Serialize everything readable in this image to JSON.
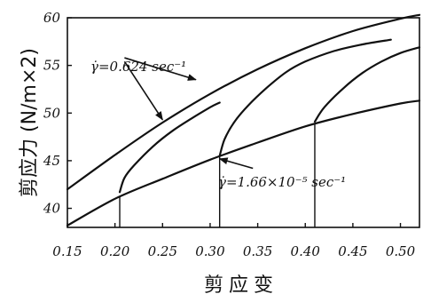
{
  "chart_data": {
    "type": "line",
    "xlabel": "剪应变",
    "ylabel": "剪应力 (N/m×2)",
    "xlim": [
      0.15,
      0.52
    ],
    "ylim": [
      38,
      60
    ],
    "x_ticks": [
      0.15,
      0.2,
      0.25,
      0.3,
      0.35,
      0.4,
      0.45,
      0.5
    ],
    "x_tick_labels": [
      "0.15",
      "0.20",
      "0.25",
      "0.30",
      "0.35",
      "0.40",
      "0.45",
      "0.50"
    ],
    "y_ticks": [
      40,
      45,
      50,
      55,
      60
    ],
    "y_tick_labels": [
      "40",
      "45",
      "50",
      "55",
      "60"
    ],
    "grid": false,
    "annotations": [
      {
        "text": "γ̇=0.624 sec⁻¹"
      },
      {
        "text": "γ̇=1.66×10⁻⁵ sec⁻¹"
      }
    ],
    "series": [
      {
        "x": [
          0.15,
          0.2,
          0.25,
          0.3,
          0.35,
          0.4,
          0.45,
          0.5,
          0.52
        ],
        "y": [
          42.0,
          45.6,
          49.0,
          52.0,
          54.6,
          56.8,
          58.6,
          59.9,
          60.3
        ]
      },
      {
        "x": [
          0.205,
          0.21,
          0.22,
          0.24,
          0.26,
          0.28,
          0.3,
          0.31
        ],
        "y": [
          41.7,
          43.2,
          44.5,
          46.5,
          48.1,
          49.4,
          50.6,
          51.1
        ]
      },
      {
        "x": [
          0.31,
          0.315,
          0.325,
          0.34,
          0.36,
          0.38,
          0.4,
          0.43,
          0.46,
          0.49
        ],
        "y": [
          45.5,
          47.2,
          49.0,
          50.8,
          52.7,
          54.3,
          55.4,
          56.5,
          57.2,
          57.7
        ]
      },
      {
        "x": [
          0.41,
          0.42,
          0.44,
          0.46,
          0.48,
          0.5,
          0.52
        ],
        "y": [
          49.1,
          50.6,
          52.6,
          54.2,
          55.4,
          56.3,
          56.9
        ]
      },
      {
        "x": [
          0.15,
          0.2,
          0.25,
          0.3,
          0.35,
          0.4,
          0.45,
          0.5,
          0.52
        ],
        "y": [
          38.2,
          41.0,
          43.1,
          45.1,
          46.9,
          48.6,
          49.9,
          51.0,
          51.3
        ]
      }
    ],
    "drop_lines_x": [
      0.205,
      0.31,
      0.41
    ],
    "arrows": [
      {
        "from": [
          0.21,
          55.8
        ],
        "to": [
          0.285,
          53.5
        ]
      },
      {
        "from": [
          0.21,
          55.4
        ],
        "to": [
          0.25,
          49.3
        ]
      },
      {
        "from": [
          0.345,
          44.2
        ],
        "to": [
          0.31,
          45.2
        ]
      }
    ]
  }
}
